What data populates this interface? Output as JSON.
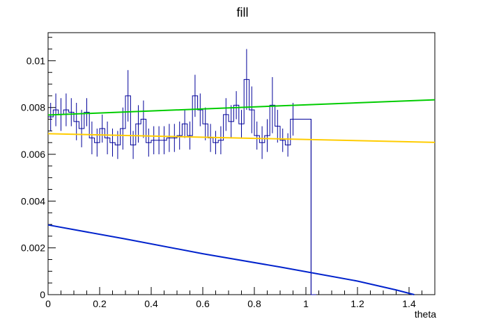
{
  "chart_data": {
    "type": "line",
    "title": "fill",
    "xlabel": "theta",
    "ylabel": "",
    "xlim": [
      0,
      1.5
    ],
    "ylim": [
      0,
      0.0112
    ],
    "x_ticks": [
      "0",
      "0.2",
      "0.4",
      "0.6",
      "0.8",
      "1",
      "1.2",
      "1.4"
    ],
    "y_ticks": [
      "0",
      "0.002",
      "0.004",
      "0.006",
      "0.008",
      "0.01"
    ],
    "x_tick_values": [
      0,
      0.2,
      0.4,
      0.6,
      0.8,
      1.0,
      1.2,
      1.4
    ],
    "y_tick_values": [
      0,
      0.002,
      0.004,
      0.006,
      0.008,
      0.01
    ],
    "grid": false,
    "histogram": {
      "color": "#000099",
      "bin_width": 0.02,
      "bin_start": 0.0,
      "values": [
        0.0076,
        0.0079,
        0.0077,
        0.0079,
        0.0078,
        0.0074,
        0.0071,
        0.0078,
        0.0067,
        0.0065,
        0.0071,
        0.0067,
        0.0065,
        0.0064,
        0.0071,
        0.0085,
        0.0064,
        0.0073,
        0.0075,
        0.0065,
        0.0066,
        0.0066,
        0.0066,
        0.0067,
        0.0067,
        0.0068,
        0.0073,
        0.0068,
        0.0085,
        0.0079,
        0.0073,
        0.0067,
        0.0065,
        0.0066,
        0.0077,
        0.0074,
        0.0081,
        0.0073,
        0.0092,
        0.0079,
        0.0068,
        0.0065,
        0.0068,
        0.0081,
        0.0072,
        0.0066,
        0.0064,
        0.0075,
        0.0075,
        0.0075,
        0.0075,
        0.0
      ],
      "errors": [
        0.0006,
        0.0007,
        0.0007,
        0.0007,
        0.0006,
        0.0008,
        0.0008,
        0.0006,
        0.0007,
        0.0006,
        0.0006,
        0.0007,
        0.0006,
        0.0006,
        0.0009,
        0.0011,
        0.0006,
        0.0008,
        0.0008,
        0.0006,
        0.0006,
        0.0006,
        0.0006,
        0.0006,
        0.0006,
        0.0006,
        0.0006,
        0.0006,
        0.0009,
        0.0007,
        0.0007,
        0.0006,
        0.0005,
        0.0006,
        0.0007,
        0.0007,
        0.0006,
        0.0006,
        0.0013,
        0.001,
        0.0006,
        0.0007,
        0.0007,
        0.0012,
        0.0007,
        0.0005,
        0.0005,
        0.0007,
        0.0,
        0.0,
        0.0,
        0.0
      ],
      "drop_x": 1.02
    },
    "series": [
      {
        "color": "#00cc00",
        "x": [
          0,
          1.5
        ],
        "y": [
          0.00768,
          0.00833
        ]
      },
      {
        "color": "#ffcc00",
        "x": [
          0,
          1.5
        ],
        "y": [
          0.00688,
          0.00651
        ]
      },
      {
        "color": "#0022cc",
        "x": [
          0,
          0.3,
          0.6,
          0.9,
          1.2,
          1.35,
          1.42
        ],
        "y": [
          0.00298,
          0.00238,
          0.00175,
          0.00118,
          0.00058,
          0.0002,
          0.0
        ]
      }
    ]
  }
}
